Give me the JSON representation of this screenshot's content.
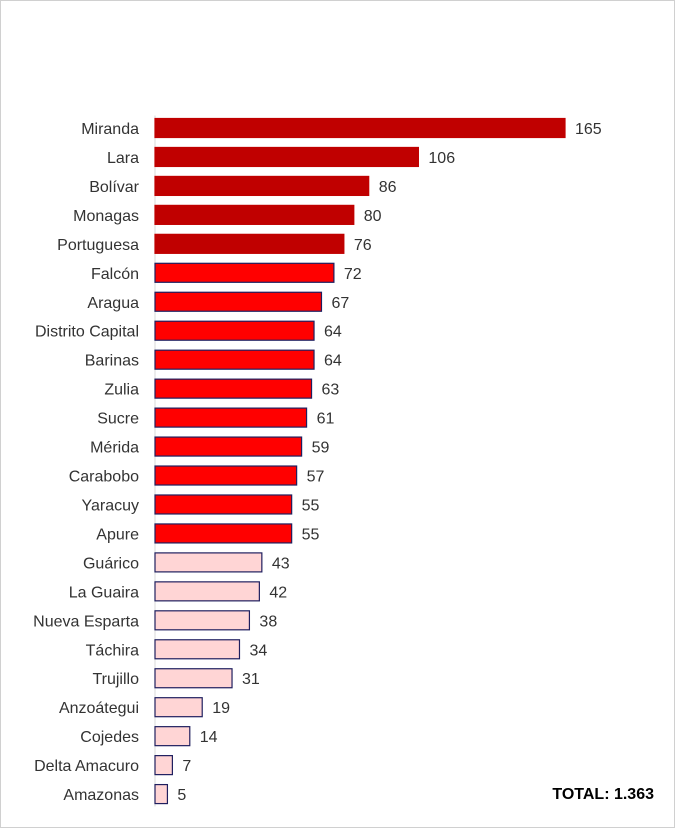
{
  "chart_data": {
    "type": "bar",
    "orientation": "horizontal",
    "categories": [
      "Miranda",
      "Lara",
      "Bolívar",
      "Monagas",
      "Portuguesa",
      "Falcón",
      "Aragua",
      "Distrito Capital",
      "Barinas",
      "Zulia",
      "Sucre",
      "Mérida",
      "Carabobo",
      "Yaracuy",
      "Apure",
      "Guárico",
      "La Guaira",
      "Nueva Esparta",
      "Táchira",
      "Trujillo",
      "Anzoátegui",
      "Cojedes",
      "Delta Amacuro",
      "Amazonas"
    ],
    "values": [
      165,
      106,
      86,
      80,
      76,
      72,
      67,
      64,
      64,
      63,
      61,
      59,
      57,
      55,
      55,
      43,
      42,
      38,
      34,
      31,
      19,
      14,
      7,
      5
    ],
    "tiers": [
      {
        "min": 76,
        "fill": "#c00000",
        "stroke": "#c00000"
      },
      {
        "min": 55,
        "fill": "#ff0000",
        "stroke": "#1f1f5f"
      },
      {
        "min": 0,
        "fill": "#ffd5d5",
        "stroke": "#1f1f5f"
      }
    ],
    "xlim": [
      0,
      165
    ],
    "grid": false,
    "legend": "none",
    "title": "",
    "xlabel": "",
    "ylabel": ""
  },
  "total_label": "TOTAL: 1.363"
}
